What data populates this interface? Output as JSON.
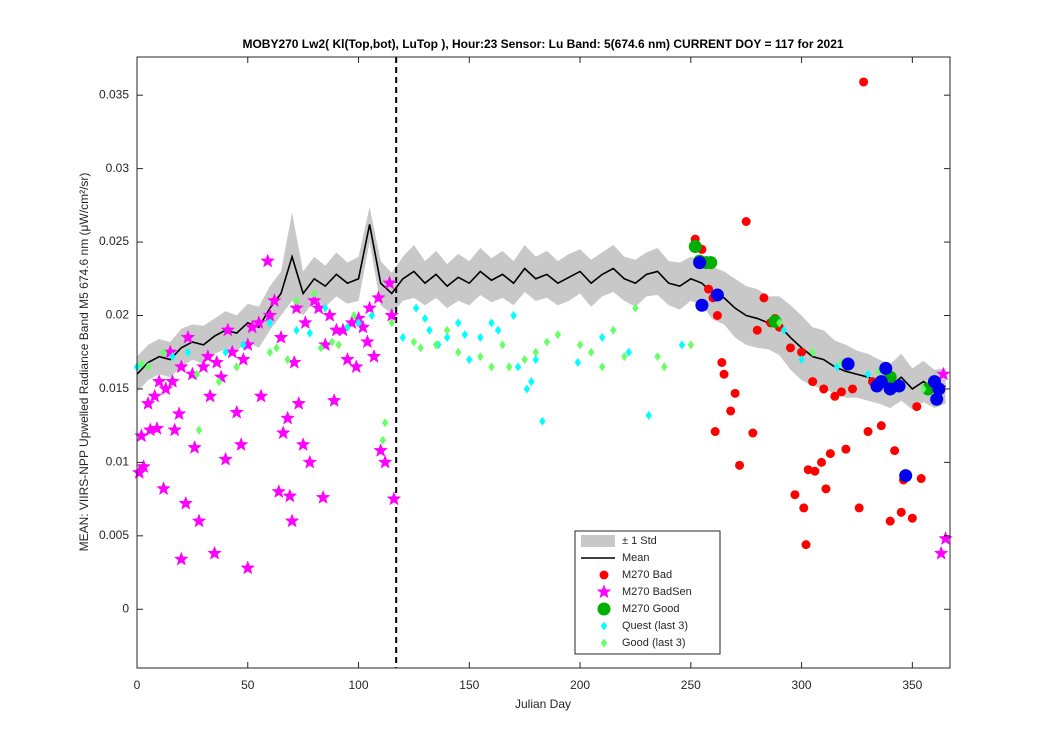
{
  "chart_data": {
    "type": "scatter",
    "title": "MOBY270   Lw2( Kl(Top,bot), LuTop ),   Hour:23 Sensor: Lu Band: 5(674.6 nm)   CURRENT DOY = 117 for 2021",
    "xlabel": "Julian Day",
    "ylabel": "MEAN: VIIRS-NPP Upwelled Radiance Band M5 674.6 nm (μW/cm²/sr)",
    "xlim": [
      0,
      367
    ],
    "ylim": [
      -0.004,
      0.0376
    ],
    "xticks": [
      0,
      50,
      100,
      150,
      200,
      250,
      300,
      350
    ],
    "yticks": [
      0,
      0.005,
      0.01,
      0.015,
      0.02,
      0.025,
      0.03,
      0.035
    ],
    "current_doy": 117,
    "legend": "lower-center",
    "x": [
      0,
      5,
      10,
      15,
      20,
      25,
      30,
      35,
      40,
      45,
      50,
      55,
      60,
      65,
      70,
      75,
      80,
      85,
      90,
      95,
      100,
      105,
      110,
      115,
      120,
      125,
      130,
      135,
      140,
      145,
      150,
      155,
      160,
      165,
      170,
      175,
      180,
      185,
      190,
      195,
      200,
      205,
      210,
      215,
      220,
      225,
      230,
      235,
      240,
      245,
      250,
      255,
      260,
      265,
      270,
      275,
      280,
      285,
      290,
      295,
      300,
      305,
      310,
      315,
      320,
      325,
      330,
      335,
      340,
      345,
      350,
      355,
      360,
      365
    ],
    "mean": {
      "name": "Mean",
      "color": "#000000",
      "values": [
        0.016,
        0.0168,
        0.0172,
        0.017,
        0.0178,
        0.0182,
        0.018,
        0.0186,
        0.019,
        0.0188,
        0.0195,
        0.0192,
        0.0205,
        0.0215,
        0.024,
        0.0215,
        0.0225,
        0.022,
        0.0228,
        0.0222,
        0.0225,
        0.0262,
        0.0222,
        0.0215,
        0.0225,
        0.023,
        0.0222,
        0.0228,
        0.022,
        0.0226,
        0.0222,
        0.023,
        0.0224,
        0.0228,
        0.0222,
        0.0232,
        0.0225,
        0.0228,
        0.0222,
        0.0226,
        0.023,
        0.0222,
        0.0228,
        0.0232,
        0.0225,
        0.0222,
        0.0228,
        0.023,
        0.0222,
        0.022,
        0.0225,
        0.0222,
        0.0215,
        0.0212,
        0.0205,
        0.02,
        0.0198,
        0.0195,
        0.0193,
        0.0185,
        0.0178,
        0.0172,
        0.017,
        0.0165,
        0.0162,
        0.016,
        0.0158,
        0.0155,
        0.0152,
        0.0158,
        0.015,
        0.0155,
        0.015,
        0.0152
      ]
    },
    "band": {
      "name": "± 1 Std",
      "color": "#c8c8c8",
      "values": [
        0.0012,
        0.0012,
        0.0012,
        0.0012,
        0.0013,
        0.0012,
        0.0013,
        0.0012,
        0.0013,
        0.0012,
        0.0013,
        0.0014,
        0.0015,
        0.0015,
        0.003,
        0.0015,
        0.0015,
        0.0014,
        0.0015,
        0.0014,
        0.0015,
        0.0012,
        0.0015,
        0.0014,
        0.0015,
        0.0018,
        0.0015,
        0.0016,
        0.0015,
        0.0016,
        0.0015,
        0.0016,
        0.0015,
        0.0016,
        0.0015,
        0.0016,
        0.0015,
        0.0016,
        0.0015,
        0.0016,
        0.0015,
        0.0016,
        0.0015,
        0.0016,
        0.0015,
        0.0016,
        0.0015,
        0.0016,
        0.0015,
        0.0016,
        0.0015,
        0.0015,
        0.0018,
        0.0018,
        0.002,
        0.002,
        0.002,
        0.0018,
        0.002,
        0.0022,
        0.0022,
        0.002,
        0.002,
        0.0018,
        0.0018,
        0.0016,
        0.0016,
        0.0015,
        0.0015,
        0.0016,
        0.0014,
        0.0014,
        0.0013,
        0.0012
      ]
    },
    "series": [
      {
        "name": "M270 Bad",
        "color": "#ff0000",
        "marker": "circle",
        "x": [
          252,
          255,
          258,
          260,
          262,
          264,
          265,
          268,
          270,
          272,
          275,
          278,
          280,
          283,
          286,
          288,
          290,
          295,
          297,
          300,
          301,
          302,
          303,
          305,
          306,
          309,
          310,
          311,
          313,
          315,
          318,
          320,
          323,
          326,
          328,
          330,
          332,
          336,
          340,
          342,
          345,
          346,
          350,
          352,
          354,
          358,
          261
        ],
        "values": [
          0.0252,
          0.0245,
          0.0218,
          0.0212,
          0.02,
          0.0168,
          0.016,
          0.0135,
          0.0147,
          0.0098,
          0.0264,
          0.012,
          0.019,
          0.0212,
          0.0195,
          0.0198,
          0.0192,
          0.0178,
          0.0078,
          0.0175,
          0.0069,
          0.0044,
          0.0095,
          0.0155,
          0.0094,
          0.01,
          0.015,
          0.0082,
          0.0106,
          0.0145,
          0.0148,
          0.0109,
          0.015,
          0.0069,
          0.0359,
          0.0121,
          0.0155,
          0.0125,
          0.006,
          0.0108,
          0.0066,
          0.0088,
          0.0062,
          0.0138,
          0.0089,
          0.015,
          0.0121
        ]
      },
      {
        "name": "M270 BadSen",
        "color": "#ff00ff",
        "marker": "star",
        "x": [
          1,
          2,
          3,
          5,
          6,
          8,
          9,
          10,
          12,
          13,
          15,
          16,
          17,
          19,
          20,
          20,
          22,
          23,
          25,
          26,
          28,
          30,
          32,
          33,
          35,
          36,
          38,
          40,
          41,
          43,
          45,
          47,
          48,
          50,
          50,
          52,
          55,
          56,
          59,
          60,
          62,
          64,
          65,
          66,
          68,
          69,
          70,
          71,
          72,
          73,
          75,
          76,
          78,
          80,
          82,
          84,
          85,
          87,
          89,
          90,
          93,
          95,
          97,
          99,
          100,
          102,
          104,
          105,
          107,
          109,
          110,
          112,
          114,
          115,
          116,
          363,
          365,
          364
        ],
        "values": [
          0.0093,
          0.0118,
          0.0097,
          0.014,
          0.0122,
          0.0145,
          0.0123,
          0.0155,
          0.0082,
          0.015,
          0.0175,
          0.0155,
          0.0122,
          0.0133,
          0.0034,
          0.0165,
          0.0072,
          0.0185,
          0.016,
          0.011,
          0.006,
          0.0165,
          0.0172,
          0.0145,
          0.0038,
          0.0168,
          0.0158,
          0.0102,
          0.019,
          0.0175,
          0.0134,
          0.0112,
          0.017,
          0.0028,
          0.018,
          0.0192,
          0.0195,
          0.0145,
          0.0237,
          0.02,
          0.021,
          0.008,
          0.0185,
          0.012,
          0.013,
          0.0077,
          0.006,
          0.0168,
          0.0205,
          0.014,
          0.0112,
          0.0195,
          0.01,
          0.021,
          0.0205,
          0.0076,
          0.018,
          0.02,
          0.0142,
          0.019,
          0.019,
          0.017,
          0.0195,
          0.0165,
          0.0198,
          0.0192,
          0.0182,
          0.0205,
          0.0172,
          0.0212,
          0.0108,
          0.01,
          0.0222,
          0.02,
          0.0075,
          0.0038,
          0.0048,
          0.016
        ]
      },
      {
        "name": "M270 Good",
        "color": "#00b000",
        "marker": "big",
        "x": [
          252,
          254,
          257,
          259,
          288,
          340,
          357
        ],
        "values": [
          0.0247,
          0.0237,
          0.0236,
          0.0236,
          0.0196,
          0.0158,
          0.015
        ]
      },
      {
        "name": "Quest (last 3)",
        "color": "#00ffff",
        "marker": "diamond",
        "x": [
          0,
          16,
          23,
          40,
          48,
          60,
          72,
          78,
          85,
          95,
          100,
          106,
          120,
          126,
          130,
          132,
          136,
          140,
          145,
          148,
          150,
          155,
          160,
          163,
          170,
          172,
          176,
          178,
          180,
          183,
          199,
          210,
          222,
          231,
          246,
          292,
          300,
          316,
          330,
          345
        ],
        "values": [
          0.0165,
          0.0172,
          0.0175,
          0.0175,
          0.018,
          0.0195,
          0.019,
          0.0188,
          0.0205,
          0.0192,
          0.0195,
          0.02,
          0.0185,
          0.0205,
          0.0198,
          0.019,
          0.018,
          0.0185,
          0.0195,
          0.0187,
          0.017,
          0.0185,
          0.0195,
          0.019,
          0.02,
          0.0165,
          0.015,
          0.0155,
          0.017,
          0.0128,
          0.0168,
          0.0185,
          0.0175,
          0.0132,
          0.018,
          0.019,
          0.017,
          0.0165,
          0.016,
          0.0152
        ]
      },
      {
        "name": "Good (last 3)",
        "color": "#66ff66",
        "marker": "diamond",
        "x": [
          2,
          5,
          12,
          27,
          37,
          45,
          60,
          68,
          72,
          80,
          83,
          88,
          91,
          98,
          112,
          111,
          115,
          125,
          128,
          135,
          140,
          145,
          155,
          160,
          165,
          168,
          175,
          180,
          185,
          190,
          200,
          205,
          210,
          215,
          220,
          225,
          235,
          238,
          250,
          290,
          305,
          318,
          335,
          355,
          28,
          63
        ],
        "values": [
          0.0167,
          0.0165,
          0.0175,
          0.016,
          0.0155,
          0.0165,
          0.0175,
          0.017,
          0.021,
          0.0215,
          0.0178,
          0.0182,
          0.018,
          0.02,
          0.0127,
          0.0115,
          0.0195,
          0.0182,
          0.0178,
          0.018,
          0.019,
          0.0175,
          0.0172,
          0.0165,
          0.018,
          0.0165,
          0.017,
          0.0175,
          0.0182,
          0.0187,
          0.018,
          0.0175,
          0.0165,
          0.019,
          0.0172,
          0.0205,
          0.0172,
          0.0165,
          0.018,
          0.0195,
          0.0175,
          0.0168,
          0.0162,
          0.015,
          0.0122,
          0.0178
        ]
      },
      {
        "color": "#0000ee",
        "marker": "big",
        "x": [
          255,
          254,
          262,
          321,
          334,
          336,
          338,
          340,
          344,
          347,
          360,
          361,
          362
        ],
        "values": [
          0.0207,
          0.0236,
          0.0214,
          0.0167,
          0.0152,
          0.0155,
          0.0164,
          0.015,
          0.0152,
          0.0091,
          0.0155,
          0.0143,
          0.015
        ]
      }
    ]
  }
}
